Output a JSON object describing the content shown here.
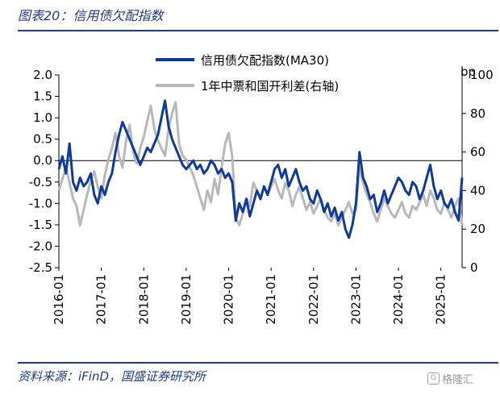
{
  "figure": {
    "title": "图表20：信用债欠配指数",
    "source": "资料来源：iFinD，国盛证券研究所",
    "watermark": "格隆汇"
  },
  "chart_data": {
    "type": "line",
    "title": "",
    "colors": {
      "series1": "#0d3a9c",
      "series2": "#b8b8b8"
    },
    "left_axis": {
      "min": -2.5,
      "max": 2.0,
      "ticks": [
        "2.0",
        "1.5",
        "1.0",
        "0.5",
        "0.0",
        "-0.5",
        "-1.0",
        "-1.5",
        "-2.0",
        "-2.5"
      ]
    },
    "right_axis": {
      "min": 0,
      "max": 100,
      "unit": "bp",
      "ticks": [
        "100",
        "80",
        "60",
        "40",
        "20",
        "0"
      ]
    },
    "x_ticks": [
      "2016-01",
      "2017-01",
      "2018-01",
      "2019-01",
      "2020-01",
      "2021-01",
      "2022-01",
      "2023-01",
      "2024-01",
      "2025-01"
    ],
    "x_range": [
      "2016-01",
      "2025-07"
    ],
    "grid": false,
    "legend_position": "top-right",
    "series": [
      {
        "name": "信用债欠配指数(MA30)",
        "axis": "left",
        "x": [
          "2016-01",
          "2016-02",
          "2016-03",
          "2016-04",
          "2016-05",
          "2016-06",
          "2016-07",
          "2016-08",
          "2016-09",
          "2016-10",
          "2016-11",
          "2016-12",
          "2017-01",
          "2017-02",
          "2017-03",
          "2017-04",
          "2017-05",
          "2017-06",
          "2017-07",
          "2017-08",
          "2017-09",
          "2017-10",
          "2017-11",
          "2017-12",
          "2018-01",
          "2018-02",
          "2018-03",
          "2018-04",
          "2018-05",
          "2018-06",
          "2018-07",
          "2018-08",
          "2018-09",
          "2018-10",
          "2018-11",
          "2018-12",
          "2019-01",
          "2019-02",
          "2019-03",
          "2019-04",
          "2019-05",
          "2019-06",
          "2019-07",
          "2019-08",
          "2019-09",
          "2019-10",
          "2019-11",
          "2019-12",
          "2020-01",
          "2020-02",
          "2020-03",
          "2020-04",
          "2020-05",
          "2020-06",
          "2020-07",
          "2020-08",
          "2020-09",
          "2020-10",
          "2020-11",
          "2020-12",
          "2021-01",
          "2021-02",
          "2021-03",
          "2021-04",
          "2021-05",
          "2021-06",
          "2021-07",
          "2021-08",
          "2021-09",
          "2021-10",
          "2021-11",
          "2021-12",
          "2022-01",
          "2022-02",
          "2022-03",
          "2022-04",
          "2022-05",
          "2022-06",
          "2022-07",
          "2022-08",
          "2022-09",
          "2022-10",
          "2022-11",
          "2022-12",
          "2023-01",
          "2023-02",
          "2023-03",
          "2023-04",
          "2023-05",
          "2023-06",
          "2023-07",
          "2023-08",
          "2023-09",
          "2023-10",
          "2023-11",
          "2023-12",
          "2024-01",
          "2024-02",
          "2024-03",
          "2024-04",
          "2024-05",
          "2024-06",
          "2024-07",
          "2024-08",
          "2024-09",
          "2024-10",
          "2024-11",
          "2024-12",
          "2025-01",
          "2025-02",
          "2025-03",
          "2025-04",
          "2025-05",
          "2025-06",
          "2025-07"
        ],
        "values": [
          -0.2,
          0.1,
          -0.3,
          0.4,
          -0.5,
          -0.7,
          -0.4,
          -0.6,
          -0.5,
          -0.3,
          -0.8,
          -1.0,
          -0.6,
          -0.8,
          -0.5,
          -0.3,
          0.2,
          0.6,
          0.9,
          0.7,
          0.5,
          0.3,
          0.1,
          -0.1,
          0.1,
          0.3,
          0.2,
          0.4,
          0.6,
          1.0,
          1.4,
          0.8,
          0.5,
          0.3,
          0.1,
          -0.1,
          -0.2,
          -0.1,
          0.0,
          -0.2,
          -0.1,
          -0.3,
          -0.2,
          0.0,
          -0.1,
          -0.3,
          -0.2,
          -0.4,
          -0.3,
          -0.5,
          -1.4,
          -1.0,
          -1.2,
          -0.9,
          -1.3,
          -1.0,
          -0.7,
          -0.9,
          -0.6,
          -0.8,
          -0.5,
          -0.2,
          -0.1,
          -0.4,
          -0.2,
          -0.6,
          -0.4,
          -0.2,
          -0.5,
          -0.7,
          -0.6,
          -0.9,
          -1.0,
          -0.7,
          -0.9,
          -1.2,
          -1.0,
          -1.3,
          -1.1,
          -1.4,
          -1.2,
          -1.6,
          -1.8,
          -1.5,
          -1.0,
          0.2,
          -0.4,
          -0.6,
          -0.9,
          -0.8,
          -1.2,
          -1.0,
          -0.7,
          -1.0,
          -0.8,
          -0.6,
          -0.4,
          -0.5,
          -0.7,
          -0.8,
          -0.5,
          -0.6,
          -0.9,
          -0.7,
          -0.4,
          -0.1,
          -0.6,
          -0.9,
          -0.7,
          -1.0,
          -1.1,
          -0.9,
          -1.2,
          -1.4,
          -0.4
        ]
      },
      {
        "name": "1年中票和国开利差(右轴)",
        "axis": "right",
        "x": [
          "2016-01",
          "2016-02",
          "2016-03",
          "2016-04",
          "2016-05",
          "2016-06",
          "2016-07",
          "2016-08",
          "2016-09",
          "2016-10",
          "2016-11",
          "2016-12",
          "2017-01",
          "2017-02",
          "2017-03",
          "2017-04",
          "2017-05",
          "2017-06",
          "2017-07",
          "2017-08",
          "2017-09",
          "2017-10",
          "2017-11",
          "2017-12",
          "2018-01",
          "2018-02",
          "2018-03",
          "2018-04",
          "2018-05",
          "2018-06",
          "2018-07",
          "2018-08",
          "2018-09",
          "2018-10",
          "2018-11",
          "2018-12",
          "2019-01",
          "2019-02",
          "2019-03",
          "2019-04",
          "2019-05",
          "2019-06",
          "2019-07",
          "2019-08",
          "2019-09",
          "2019-10",
          "2019-11",
          "2019-12",
          "2020-01",
          "2020-02",
          "2020-03",
          "2020-04",
          "2020-05",
          "2020-06",
          "2020-07",
          "2020-08",
          "2020-09",
          "2020-10",
          "2020-11",
          "2020-12",
          "2021-01",
          "2021-02",
          "2021-03",
          "2021-04",
          "2021-05",
          "2021-06",
          "2021-07",
          "2021-08",
          "2021-09",
          "2021-10",
          "2021-11",
          "2021-12",
          "2022-01",
          "2022-02",
          "2022-03",
          "2022-04",
          "2022-05",
          "2022-06",
          "2022-07",
          "2022-08",
          "2022-09",
          "2022-10",
          "2022-11",
          "2022-12",
          "2023-01",
          "2023-02",
          "2023-03",
          "2023-04",
          "2023-05",
          "2023-06",
          "2023-07",
          "2023-08",
          "2023-09",
          "2023-10",
          "2023-11",
          "2023-12",
          "2024-01",
          "2024-02",
          "2024-03",
          "2024-04",
          "2024-05",
          "2024-06",
          "2024-07",
          "2024-08",
          "2024-09",
          "2024-10",
          "2024-11",
          "2024-12",
          "2025-01",
          "2025-02",
          "2025-03",
          "2025-04",
          "2025-05",
          "2025-06",
          "2025-07"
        ],
        "values": [
          40,
          46,
          52,
          44,
          36,
          32,
          22,
          30,
          38,
          45,
          50,
          42,
          36,
          48,
          56,
          62,
          70,
          58,
          52,
          66,
          74,
          60,
          54,
          62,
          68,
          76,
          84,
          72,
          66,
          62,
          58,
          72,
          80,
          86,
          64,
          58,
          56,
          52,
          48,
          42,
          36,
          30,
          40,
          34,
          46,
          38,
          52,
          64,
          70,
          58,
          26,
          22,
          28,
          36,
          32,
          44,
          40,
          36,
          42,
          38,
          42,
          46,
          40,
          36,
          44,
          40,
          32,
          38,
          42,
          36,
          30,
          34,
          28,
          32,
          36,
          30,
          26,
          24,
          28,
          22,
          26,
          30,
          34,
          28,
          30,
          52,
          44,
          38,
          34,
          28,
          24,
          30,
          36,
          32,
          28,
          26,
          30,
          34,
          28,
          26,
          32,
          30,
          34,
          38,
          32,
          40,
          36,
          30,
          28,
          34,
          30,
          26,
          32,
          36,
          22
        ]
      }
    ]
  }
}
